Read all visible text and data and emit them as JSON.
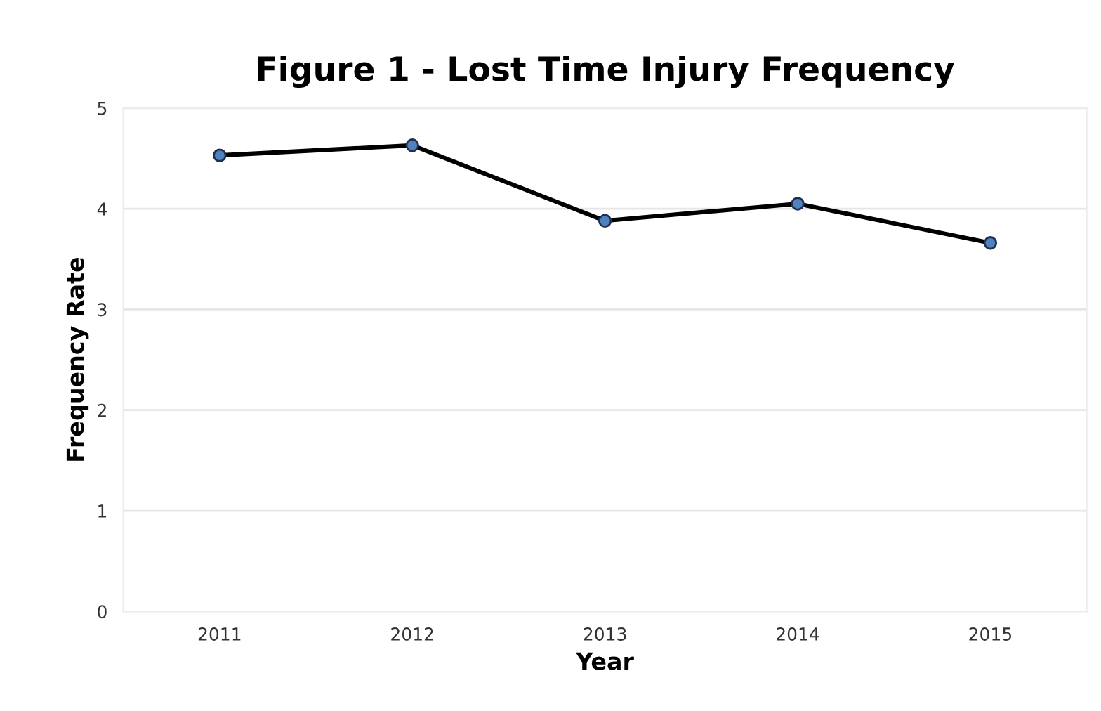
{
  "chart_data": {
    "type": "line",
    "title": "Figure 1 - Lost Time Injury Frequency",
    "xlabel": "Year",
    "ylabel": "Frequency Rate",
    "categories": [
      "2011",
      "2012",
      "2013",
      "2014",
      "2015"
    ],
    "series": [
      {
        "color": "#000000",
        "values": [
          4.53,
          4.63,
          3.88,
          4.05,
          3.66
        ]
      }
    ],
    "ylim": [
      0,
      5
    ],
    "yticks": [
      0,
      1,
      2,
      3,
      4,
      5
    ],
    "grid": "y",
    "marker": "circle",
    "line_style": "solid"
  }
}
